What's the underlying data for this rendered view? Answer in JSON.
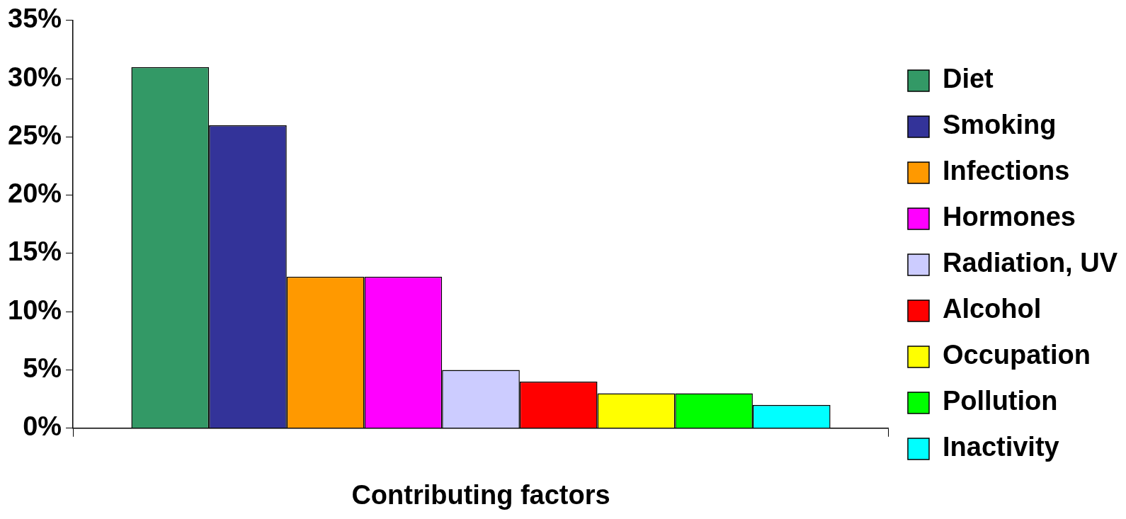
{
  "chart_data": {
    "type": "bar",
    "xlabel": "Contributing factors",
    "categories": [
      null
    ],
    "series": [
      {
        "name": "Diet",
        "color": "#339966",
        "values": [
          31
        ]
      },
      {
        "name": "Smoking",
        "color": "#333399",
        "values": [
          26
        ]
      },
      {
        "name": "Infections",
        "color": "#ff9900",
        "values": [
          13
        ]
      },
      {
        "name": "Hormones",
        "color": "#ff00ff",
        "values": [
          13
        ]
      },
      {
        "name": "Radiation, UV",
        "color": "#ccccff",
        "values": [
          5
        ]
      },
      {
        "name": "Alcohol",
        "color": "#ff0000",
        "values": [
          4
        ]
      },
      {
        "name": "Occupation",
        "color": "#ffff00",
        "values": [
          3
        ]
      },
      {
        "name": "Pollution",
        "color": "#00ff00",
        "values": [
          3
        ]
      },
      {
        "name": "Inactivity",
        "color": "#00ffff",
        "values": [
          2
        ]
      }
    ],
    "ylim": [
      0,
      35
    ],
    "yticks": [
      {
        "value": 0,
        "label": "0%"
      },
      {
        "value": 5,
        "label": "5%"
      },
      {
        "value": 10,
        "label": "10%"
      },
      {
        "value": 15,
        "label": "15%"
      },
      {
        "value": 20,
        "label": "20%"
      },
      {
        "value": 25,
        "label": "25%"
      },
      {
        "value": 30,
        "label": "30%"
      },
      {
        "value": 35,
        "label": "35%"
      }
    ],
    "grid": false,
    "legend": "right"
  }
}
